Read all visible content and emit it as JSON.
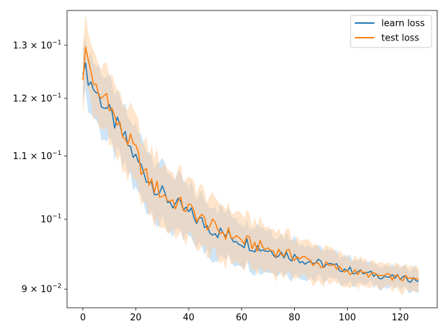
{
  "chart_data": {
    "type": "line",
    "title": "",
    "xlabel": "",
    "ylabel": "",
    "yscale": "log",
    "xlim": [
      -6,
      134
    ],
    "ylim": [
      0.0875,
      0.137
    ],
    "grid": false,
    "legend_position": "top-right",
    "x_ticks": [
      0,
      20,
      40,
      60,
      80,
      100,
      120
    ],
    "y_ticks": [
      {
        "value": 0.09,
        "label_base": "9 × 10",
        "label_exp": "−2"
      },
      {
        "value": 0.1,
        "label_base": "10",
        "label_exp": "−1"
      },
      {
        "value": 0.11,
        "label_base": "1.1 × 10",
        "label_exp": "−1"
      },
      {
        "value": 0.12,
        "label_base": "1.2 × 10",
        "label_exp": "−1"
      },
      {
        "value": 0.13,
        "label_base": "1.3 × 10",
        "label_exp": "−1"
      }
    ],
    "series": [
      {
        "name": "learn loss",
        "color": "#1f77b4",
        "band_color": "#a6cff2",
        "band_halfwidth": 0.0055,
        "keypoints": [
          [
            0,
            0.1262
          ],
          [
            3,
            0.1228
          ],
          [
            8,
            0.1188
          ],
          [
            12,
            0.1158
          ],
          [
            16,
            0.1128
          ],
          [
            20,
            0.1095
          ],
          [
            25,
            0.1062
          ],
          [
            30,
            0.1038
          ],
          [
            35,
            0.1022
          ],
          [
            40,
            0.1009
          ],
          [
            45,
            0.0995
          ],
          [
            50,
            0.0983
          ],
          [
            55,
            0.0975
          ],
          [
            60,
            0.0968
          ],
          [
            65,
            0.096
          ],
          [
            70,
            0.0955
          ],
          [
            75,
            0.095
          ],
          [
            80,
            0.0945
          ],
          [
            85,
            0.0939
          ],
          [
            90,
            0.0935
          ],
          [
            95,
            0.0931
          ],
          [
            100,
            0.0927
          ],
          [
            105,
            0.0923
          ],
          [
            110,
            0.092
          ],
          [
            115,
            0.0917
          ],
          [
            120,
            0.0915
          ],
          [
            127,
            0.0913
          ]
        ]
      },
      {
        "name": "test loss",
        "color": "#ff7f0e",
        "band_color": "#ffcc99",
        "band_halfwidth": 0.0062,
        "keypoints": [
          [
            0,
            0.1245
          ],
          [
            1,
            0.1288
          ],
          [
            3,
            0.1252
          ],
          [
            6,
            0.1196
          ],
          [
            9,
            0.1208
          ],
          [
            12,
            0.1165
          ],
          [
            15,
            0.1137
          ],
          [
            18,
            0.1122
          ],
          [
            20,
            0.1107
          ],
          [
            23,
            0.1072
          ],
          [
            26,
            0.1055
          ],
          [
            29,
            0.1043
          ],
          [
            32,
            0.1032
          ],
          [
            36,
            0.1024
          ],
          [
            40,
            0.1016
          ],
          [
            44,
            0.1003
          ],
          [
            48,
            0.0991
          ],
          [
            52,
            0.0982
          ],
          [
            56,
            0.0977
          ],
          [
            60,
            0.0969
          ],
          [
            65,
            0.0962
          ],
          [
            70,
            0.0956
          ],
          [
            75,
            0.0951
          ],
          [
            80,
            0.0946
          ],
          [
            85,
            0.094
          ],
          [
            90,
            0.0934
          ],
          [
            95,
            0.093
          ],
          [
            100,
            0.0925
          ],
          [
            105,
            0.0922
          ],
          [
            110,
            0.0919
          ],
          [
            115,
            0.0917
          ],
          [
            120,
            0.0915
          ],
          [
            127,
            0.0912
          ]
        ]
      }
    ]
  }
}
